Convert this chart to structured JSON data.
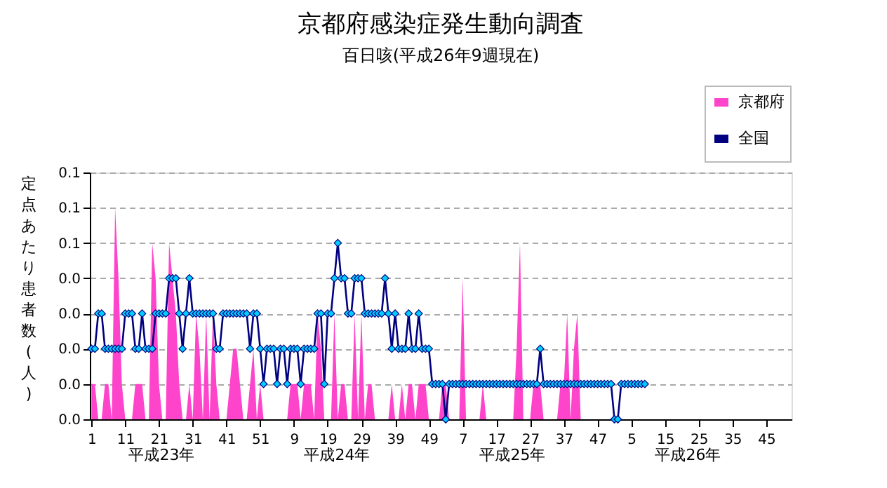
{
  "chart_data": {
    "type": "line",
    "title": "京都府感染症発生動向調査",
    "subtitle": "百日咳(平成26年9週現在)",
    "ylabel": "定点あたり患者数(人)",
    "annotations": [
      "平成23年",
      "平成24年",
      "平成25年",
      "平成26年"
    ],
    "categories": [
      "1",
      null,
      null,
      null,
      null,
      null,
      null,
      null,
      null,
      null,
      "11",
      null,
      null,
      null,
      null,
      null,
      null,
      null,
      null,
      null,
      "21",
      null,
      null,
      null,
      null,
      null,
      null,
      null,
      null,
      null,
      "31",
      null,
      null,
      null,
      null,
      null,
      null,
      null,
      null,
      null,
      "41",
      null,
      null,
      null,
      null,
      null,
      null,
      null,
      null,
      null,
      "51",
      null,
      null,
      null,
      null,
      null,
      null,
      null,
      null,
      null,
      "9",
      null,
      null,
      null,
      null,
      null,
      null,
      null,
      null,
      null,
      "19",
      null,
      null,
      null,
      null,
      null,
      null,
      null,
      null,
      null,
      "29",
      null,
      null,
      null,
      null,
      null,
      null,
      null,
      null,
      null,
      "39",
      null,
      null,
      null,
      null,
      null,
      null,
      null,
      null,
      null,
      "49",
      null,
      null,
      null,
      null,
      null,
      null,
      null,
      null,
      null,
      "7",
      null,
      null,
      null,
      null,
      null,
      null,
      null,
      null,
      null,
      "17",
      null,
      null,
      null,
      null,
      null,
      null,
      null,
      null,
      null,
      "27",
      null,
      null,
      null,
      null,
      null,
      null,
      null,
      null,
      null,
      "37",
      null,
      null,
      null,
      null,
      null,
      null,
      null,
      null,
      null,
      "47",
      null,
      null,
      null,
      null,
      null,
      null,
      null,
      null,
      null,
      "5",
      null,
      null,
      null,
      null,
      null,
      null,
      null,
      null,
      null,
      "15",
      null,
      null,
      null,
      null,
      null,
      null,
      null,
      null,
      null,
      "25",
      null,
      null,
      null,
      null,
      null,
      null,
      null,
      null,
      null,
      "35",
      null,
      null,
      null,
      null,
      null,
      null,
      null,
      null,
      null,
      "45",
      null,
      null,
      null,
      null,
      null,
      null,
      null
    ],
    "series": [
      {
        "name": "京都府",
        "type": "area",
        "color": "#ff44cc",
        "values": [
          0.01,
          0.01,
          0,
          0,
          0.01,
          0.01,
          0,
          0.06,
          0.04,
          0.01,
          0,
          0,
          0,
          0.01,
          0.01,
          0.01,
          0,
          0,
          0.05,
          0.04,
          0.01,
          0,
          0,
          0.05,
          0.04,
          0.03,
          0.01,
          0,
          0,
          0.01,
          0,
          0.03,
          0.02,
          0,
          0.03,
          0,
          0.03,
          0.01,
          0,
          0,
          0,
          0.01,
          0.02,
          0.02,
          0.01,
          0,
          0,
          0.01,
          0.02,
          0,
          0.01,
          0,
          0,
          0,
          0,
          0,
          0,
          0,
          0,
          0.01,
          0.01,
          0.01,
          0,
          0.01,
          0.01,
          0.01,
          0,
          0.03,
          0.02,
          0,
          0,
          0,
          0.03,
          0,
          0.01,
          0.01,
          0,
          0,
          0.03,
          0,
          0.03,
          0,
          0.01,
          0.01,
          0,
          0,
          0,
          0,
          0,
          0.01,
          0,
          0,
          0.01,
          0,
          0.01,
          0.01,
          0,
          0.01,
          0.01,
          0.01,
          0,
          0,
          0,
          0,
          0.01,
          0.01,
          0,
          0,
          0,
          0,
          0.04,
          0,
          0,
          0,
          0,
          0,
          0.01,
          0,
          0,
          0,
          0,
          0,
          0,
          0,
          0,
          0,
          0.02,
          0.05,
          0,
          0,
          0,
          0.01,
          0.01,
          0.01,
          0,
          0,
          0,
          0,
          0,
          0.01,
          0.01,
          0.03,
          0,
          0.02,
          0.03,
          0,
          0,
          0,
          0,
          0,
          0,
          0,
          0,
          0,
          0,
          0,
          0,
          0,
          0,
          0,
          0,
          0,
          0,
          0,
          0,
          null,
          null,
          null,
          null,
          null,
          null,
          null,
          null,
          null,
          null,
          null,
          null,
          null,
          null,
          null,
          null,
          null,
          null,
          null,
          null,
          null,
          null,
          null,
          null,
          null,
          null,
          null,
          null,
          null,
          null,
          null,
          null,
          null,
          null,
          null,
          null,
          null,
          null,
          null,
          null,
          null,
          null,
          null
        ]
      },
      {
        "name": "全国",
        "color": "#000080",
        "marker": "diamond",
        "values": [
          0.02,
          0.02,
          0.03,
          0.03,
          0.02,
          0.02,
          0.02,
          0.02,
          0.02,
          0.02,
          0.03,
          0.03,
          0.03,
          0.02,
          0.02,
          0.03,
          0.02,
          0.02,
          0.02,
          0.03,
          0.03,
          0.03,
          0.03,
          0.04,
          0.04,
          0.04,
          0.03,
          0.02,
          0.03,
          0.04,
          0.03,
          0.03,
          0.03,
          0.03,
          0.03,
          0.03,
          0.03,
          0.02,
          0.02,
          0.03,
          0.03,
          0.03,
          0.03,
          0.03,
          0.03,
          0.03,
          0.03,
          0.02,
          0.03,
          0.03,
          0.02,
          0.01,
          0.02,
          0.02,
          0.02,
          0.01,
          0.02,
          0.02,
          0.01,
          0.02,
          0.02,
          0.02,
          0.01,
          0.02,
          0.02,
          0.02,
          0.02,
          0.03,
          0.03,
          0.01,
          0.03,
          0.03,
          0.04,
          0.05,
          0.04,
          0.04,
          0.03,
          0.03,
          0.04,
          0.04,
          0.04,
          0.03,
          0.03,
          0.03,
          0.03,
          0.03,
          0.03,
          0.04,
          0.03,
          0.02,
          0.03,
          0.02,
          0.02,
          0.02,
          0.03,
          0.02,
          0.02,
          0.03,
          0.02,
          0.02,
          0.02,
          0.01,
          0.01,
          0.01,
          0.01,
          0,
          0.01,
          0.01,
          0.01,
          0.01,
          0.01,
          0.01,
          0.01,
          0.01,
          0.01,
          0.01,
          0.01,
          0.01,
          0.01,
          0.01,
          0.01,
          0.01,
          0.01,
          0.01,
          0.01,
          0.01,
          0.01,
          0.01,
          0.01,
          0.01,
          0.01,
          0.01,
          0.01,
          0.02,
          0.01,
          0.01,
          0.01,
          0.01,
          0.01,
          0.01,
          0.01,
          0.01,
          0.01,
          0.01,
          0.01,
          0.01,
          0.01,
          0.01,
          0.01,
          0.01,
          0.01,
          0.01,
          0.01,
          0.01,
          0.01,
          0,
          0,
          0.01,
          0.01,
          0.01,
          0.01,
          0.01,
          0.01,
          0.01,
          0.01,
          null,
          null,
          null,
          null,
          null,
          null,
          null,
          null,
          null,
          null,
          null,
          null,
          null,
          null,
          null,
          null,
          null,
          null,
          null,
          null,
          null,
          null,
          null,
          null,
          null,
          null,
          null,
          null,
          null,
          null,
          null,
          null,
          null,
          null,
          null,
          null,
          null,
          null,
          null,
          null,
          null,
          null,
          null
        ]
      }
    ],
    "ylim": [
      0,
      0.07
    ],
    "yticks": [
      {
        "value": 0,
        "label": "0.0"
      },
      {
        "value": 0.01,
        "label": "0.0"
      },
      {
        "value": 0.02,
        "label": "0.0"
      },
      {
        "value": 0.03,
        "label": "0.0"
      },
      {
        "value": 0.04,
        "label": "0.0"
      },
      {
        "value": 0.05,
        "label": "0.1"
      },
      {
        "value": 0.06,
        "label": "0.1"
      },
      {
        "value": 0.07,
        "label": "0.1"
      }
    ],
    "grid": "y",
    "legend": "top right",
    "line_style": "solid"
  }
}
